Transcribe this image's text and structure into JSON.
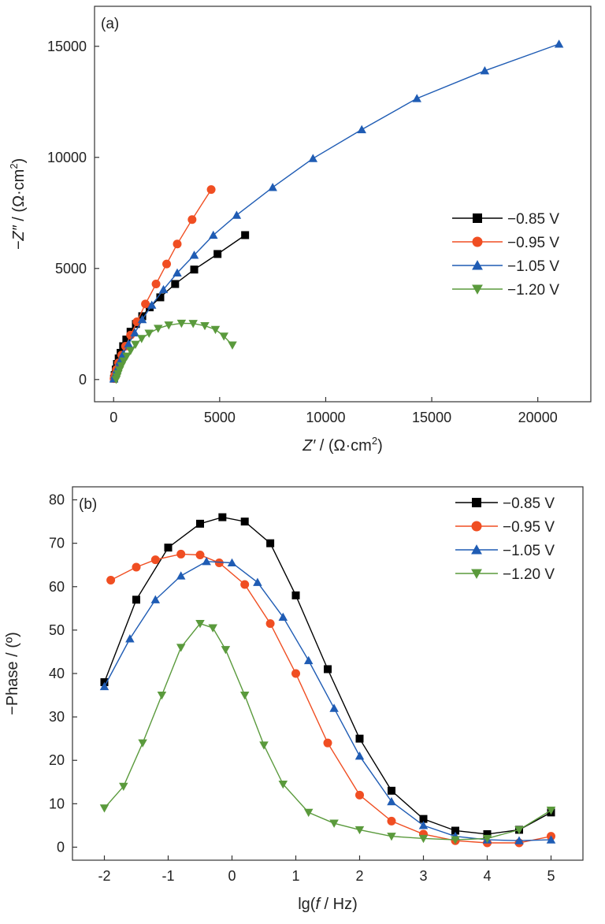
{
  "chart_data": [
    {
      "type": "scatter",
      "panel_label": "(a)",
      "xlabel_main": "Z′",
      "xlabel_unit": " / (Ω·cm",
      "xlabel_sup": "2",
      "xlabel_close": ")",
      "ylabel_main": "−Z″",
      "ylabel_unit": " / (Ω·cm",
      "ylabel_sup": "2",
      "ylabel_close": ")",
      "xlim": [
        -900,
        22500
      ],
      "ylim": [
        -1000,
        16800
      ],
      "xticks": [
        0,
        5000,
        10000,
        15000,
        20000
      ],
      "yticks": [
        0,
        5000,
        10000,
        15000
      ],
      "legend_position": "right-middle",
      "series": [
        {
          "name": "−0.85 V",
          "color": "#000000",
          "marker": "square",
          "x": [
            20,
            50,
            100,
            160,
            240,
            330,
            450,
            600,
            800,
            1050,
            1350,
            1700,
            2200,
            2900,
            3800,
            4900,
            6200
          ],
          "y": [
            40,
            200,
            450,
            700,
            950,
            1200,
            1500,
            1800,
            2150,
            2500,
            2850,
            3250,
            3700,
            4300,
            4950,
            5650,
            6500
          ]
        },
        {
          "name": "−0.95 V",
          "color": "#f04e22",
          "marker": "circle",
          "x": [
            20,
            60,
            130,
            230,
            380,
            560,
            800,
            1100,
            1500,
            2000,
            2500,
            3000,
            3700,
            4600
          ],
          "y": [
            40,
            200,
            450,
            750,
            1100,
            1500,
            2000,
            2600,
            3400,
            4300,
            5200,
            6100,
            7200,
            8550
          ]
        },
        {
          "name": "−1.05 V",
          "color": "#1f5cb4",
          "marker": "triangle-up",
          "x": [
            10,
            60,
            150,
            280,
            450,
            700,
            1000,
            1350,
            1800,
            2350,
            3000,
            3800,
            4700,
            5800,
            7500,
            9400,
            11700,
            14300,
            17500,
            21000
          ],
          "y": [
            30,
            200,
            450,
            800,
            1150,
            1600,
            2100,
            2700,
            3350,
            4050,
            4800,
            5600,
            6500,
            7400,
            8650,
            9950,
            11250,
            12650,
            13900,
            15100
          ]
        },
        {
          "name": "−1.20 V",
          "color": "#5a9a3c",
          "marker": "triangle-down",
          "x": [
            120,
            160,
            210,
            280,
            370,
            480,
            620,
            800,
            1030,
            1320,
            1670,
            2100,
            2600,
            3200,
            3750,
            4300,
            4800,
            5200,
            5600
          ],
          "y": [
            0,
            120,
            260,
            430,
            620,
            830,
            1050,
            1300,
            1580,
            1840,
            2080,
            2300,
            2450,
            2530,
            2520,
            2420,
            2250,
            1950,
            1550
          ]
        }
      ]
    },
    {
      "type": "scatter",
      "panel_label": "(b)",
      "xlabel_pre": "lg(",
      "xlabel_italic": "f",
      "xlabel_post": " / Hz)",
      "ylabel": "−Phase / (º)",
      "xlim": [
        -2.5,
        5.5
      ],
      "ylim": [
        -3,
        83
      ],
      "xticks": [
        -2,
        -1,
        0,
        1,
        2,
        3,
        4,
        5
      ],
      "yticks": [
        0,
        10,
        20,
        30,
        40,
        50,
        60,
        70,
        80
      ],
      "legend_position": "top-right",
      "series": [
        {
          "name": "−0.85 V",
          "color": "#000000",
          "marker": "square",
          "x": [
            -2,
            -1.5,
            -1,
            -0.5,
            -0.15,
            0.2,
            0.6,
            1,
            1.5,
            2,
            2.5,
            3,
            3.5,
            4,
            4.5,
            5
          ],
          "y": [
            38,
            57,
            69,
            74.5,
            76,
            75,
            70,
            58,
            41,
            25,
            13,
            6.5,
            3.8,
            3,
            4,
            8
          ]
        },
        {
          "name": "−0.95 V",
          "color": "#f04e22",
          "marker": "circle",
          "x": [
            -1.9,
            -1.5,
            -1.2,
            -0.8,
            -0.5,
            -0.2,
            0.2,
            0.6,
            1,
            1.5,
            2,
            2.5,
            3,
            3.5,
            4,
            4.5,
            5
          ],
          "y": [
            61.5,
            64.5,
            66.2,
            67.5,
            67.3,
            65.5,
            60.5,
            51.5,
            40,
            24,
            12,
            6,
            3,
            1.5,
            1,
            1,
            2.5
          ]
        },
        {
          "name": "−1.05 V",
          "color": "#1f5cb4",
          "marker": "triangle-up",
          "x": [
            -2,
            -1.6,
            -1.2,
            -0.8,
            -0.4,
            0,
            0.4,
            0.8,
            1.2,
            1.6,
            2,
            2.5,
            3,
            3.5,
            4,
            4.5,
            5
          ],
          "y": [
            37,
            48,
            57,
            62.5,
            65.8,
            65.5,
            61,
            53,
            43,
            32,
            21,
            10.5,
            5,
            2.5,
            1.7,
            1.5,
            1.7
          ]
        },
        {
          "name": "−1.20 V",
          "color": "#5a9a3c",
          "marker": "triangle-down",
          "x": [
            -2,
            -1.7,
            -1.4,
            -1.1,
            -0.8,
            -0.5,
            -0.3,
            -0.1,
            0.2,
            0.5,
            0.8,
            1.2,
            1.6,
            2,
            2.5,
            3,
            3.5,
            4,
            4.5,
            5
          ],
          "y": [
            9,
            14,
            24,
            35,
            46,
            51.5,
            50.5,
            45.5,
            35,
            23.5,
            14.5,
            8,
            5.5,
            4,
            2.5,
            2,
            1.7,
            2,
            4,
            8.5
          ]
        }
      ]
    }
  ]
}
